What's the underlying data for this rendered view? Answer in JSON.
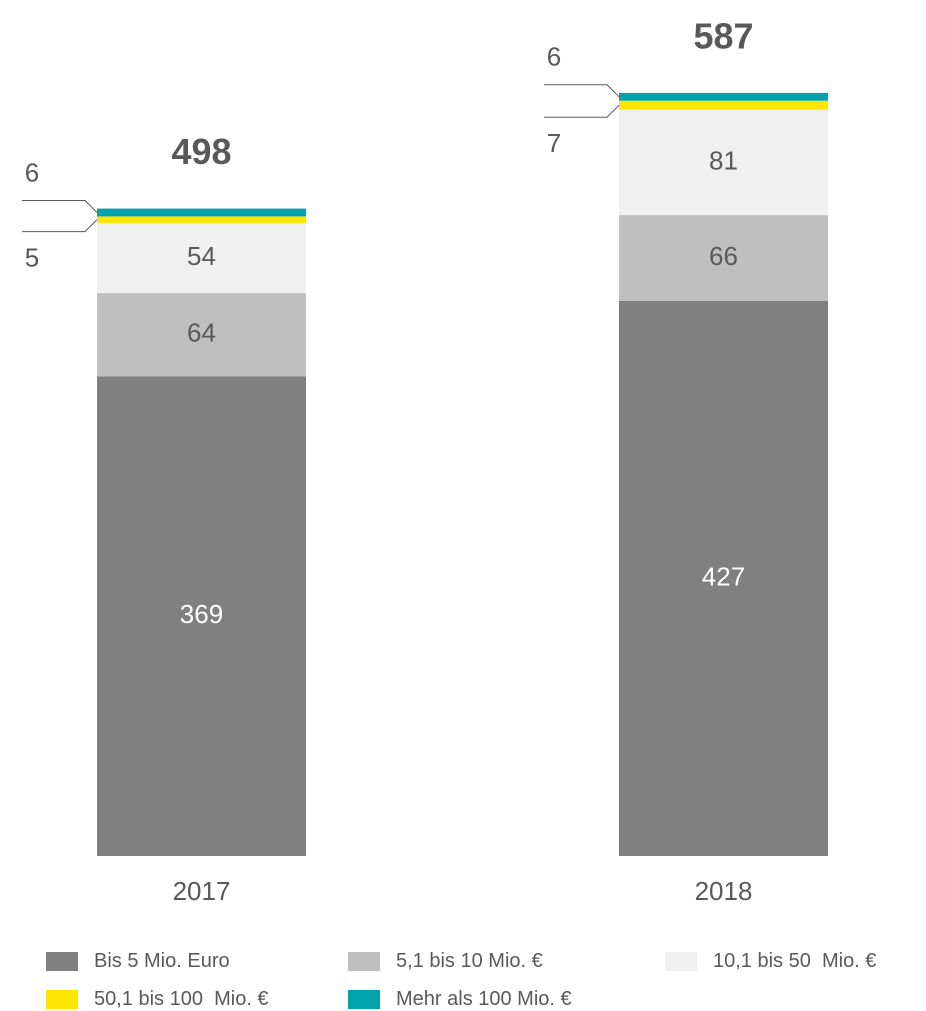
{
  "chart_data": {
    "type": "bar",
    "stacked": true,
    "categories": [
      "2017",
      "2018"
    ],
    "series": [
      {
        "name": "Bis 5 Mio. Euro",
        "values": [
          369,
          427
        ],
        "color": "#808080",
        "label_color": "#ffffff"
      },
      {
        "name": "5,1 bis 10 Mio. €",
        "values": [
          64,
          66
        ],
        "color": "#bfbfbf",
        "label_color": "#595959"
      },
      {
        "name": "10,1 bis 50  Mio. €",
        "values": [
          54,
          81
        ],
        "color": "#f0f0f0",
        "label_color": "#595959"
      },
      {
        "name": "50,1 bis 100  Mio. €",
        "values": [
          5,
          7
        ],
        "color": "#ffe600",
        "label_color": "#595959"
      },
      {
        "name": "Mehr als 100 Mio. €",
        "values": [
          6,
          6
        ],
        "color": "#00a3ad",
        "label_color": "#595959"
      }
    ],
    "totals": [
      498,
      587
    ],
    "data_labels": {
      "bars": [
        {
          "inside": [
            "369",
            "64",
            "54"
          ],
          "callout_top": "6",
          "callout_bottom": "5",
          "total": "498"
        },
        {
          "inside": [
            "427",
            "66",
            "81"
          ],
          "callout_top": "6",
          "callout_bottom": "7",
          "total": "587"
        }
      ]
    },
    "title": "",
    "xlabel": "",
    "ylabel": "",
    "grid": false,
    "legend_position": "bottom"
  }
}
